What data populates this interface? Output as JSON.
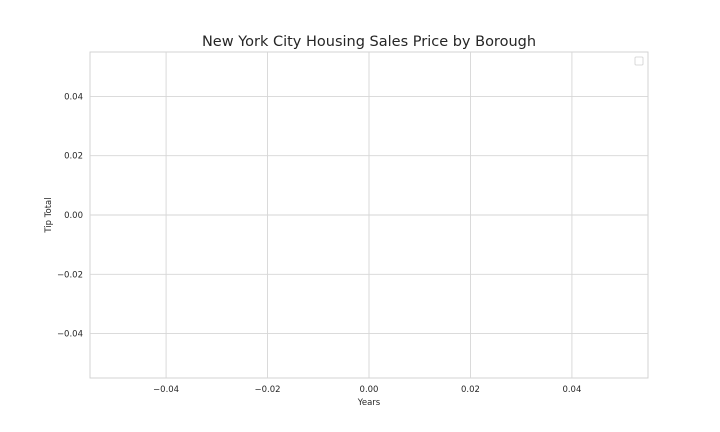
{
  "chart_data": {
    "type": "line",
    "title": "New York City Housing Sales Price by Borough",
    "xlabel": "Years",
    "ylabel": "Tip Total",
    "xlim": [
      -0.055,
      0.055
    ],
    "ylim": [
      -0.055,
      0.055
    ],
    "xticks": [
      -0.04,
      -0.02,
      0.0,
      0.02,
      0.04
    ],
    "yticks": [
      -0.04,
      -0.02,
      0.0,
      0.02,
      0.04
    ],
    "xtick_labels": [
      "−0.04",
      "−0.02",
      "0.00",
      "0.02",
      "0.04"
    ],
    "ytick_labels": [
      "−0.04",
      "−0.02",
      "0.00",
      "0.02",
      "0.04"
    ],
    "series": [],
    "grid": true,
    "legend": "upper right (empty)"
  }
}
